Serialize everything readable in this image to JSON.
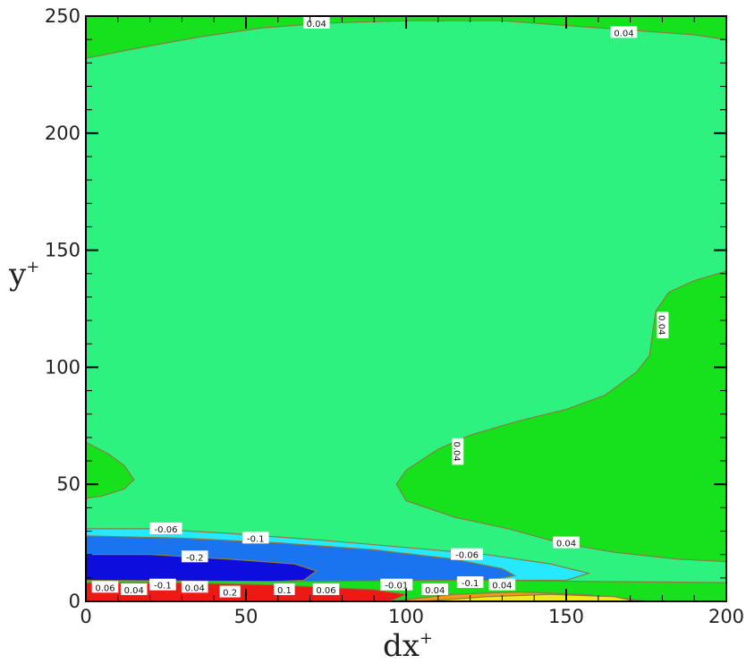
{
  "chart_data": {
    "type": "contour",
    "xlabel": "dx",
    "xlabel_sup": "+",
    "ylabel": "y",
    "ylabel_sup": "+",
    "xlim": [
      0,
      200
    ],
    "ylim": [
      0,
      250
    ],
    "xticks": [
      0,
      50,
      100,
      150,
      200
    ],
    "yticks": [
      0,
      50,
      100,
      150,
      200,
      250
    ],
    "colors": {
      "light_green": "#2df27f",
      "green": "#16e11d",
      "cyan": "#26e9ff",
      "mid_blue": "#1a74f0",
      "dark_blue": "#0d0ddc",
      "red": "#ec1a14",
      "orange": "#f49a18",
      "yellow": "#f0ea1c",
      "line": "#8a7d3c"
    },
    "contour_labels": [
      {
        "text": "0.04",
        "x": 72,
        "y": 247
      },
      {
        "text": "0.04",
        "x": 168,
        "y": 243
      },
      {
        "text": "0.04",
        "x": 180,
        "y": 118,
        "rotate": 90
      },
      {
        "text": "0.04",
        "x": 116,
        "y": 64,
        "rotate": 90
      },
      {
        "text": "0.04",
        "x": 150,
        "y": 25
      },
      {
        "text": "-0.06",
        "x": 25,
        "y": 31
      },
      {
        "text": "-0.1",
        "x": 53,
        "y": 27
      },
      {
        "text": "-0.2",
        "x": 34,
        "y": 19
      },
      {
        "text": "-0.06",
        "x": 119,
        "y": 20
      },
      {
        "text": "-0.1",
        "x": 120,
        "y": 8
      },
      {
        "text": "0.04",
        "x": 130,
        "y": 7
      },
      {
        "text": "0.06",
        "x": 6,
        "y": 6
      },
      {
        "text": "0.04",
        "x": 15,
        "y": 5
      },
      {
        "text": "-0.1",
        "x": 24,
        "y": 7
      },
      {
        "text": "0.04",
        "x": 34,
        "y": 6
      },
      {
        "text": "0.2",
        "x": 45,
        "y": 4
      },
      {
        "text": "0.1",
        "x": 62,
        "y": 5
      },
      {
        "text": "0.06",
        "x": 75,
        "y": 5
      },
      {
        "text": "-0.01",
        "x": 97,
        "y": 7
      },
      {
        "text": "0.04",
        "x": 109,
        "y": 5
      }
    ],
    "regions": [
      {
        "color": "green",
        "points": [
          [
            0,
            232
          ],
          [
            15,
            236
          ],
          [
            35,
            241
          ],
          [
            55,
            245
          ],
          [
            75,
            247
          ],
          [
            100,
            248
          ],
          [
            130,
            248
          ],
          [
            150,
            246
          ],
          [
            170,
            244
          ],
          [
            190,
            242
          ],
          [
            200,
            240
          ],
          [
            200,
            250
          ],
          [
            0,
            250
          ]
        ]
      },
      {
        "color": "green",
        "points": [
          [
            0,
            68
          ],
          [
            7,
            63
          ],
          [
            12,
            58
          ],
          [
            15,
            52
          ],
          [
            12,
            48
          ],
          [
            5,
            45
          ],
          [
            0,
            44
          ]
        ]
      },
      {
        "color": "green",
        "points": [
          [
            200,
            141
          ],
          [
            190,
            137
          ],
          [
            182,
            132
          ],
          [
            178,
            124
          ],
          [
            177,
            115
          ],
          [
            176,
            105
          ],
          [
            172,
            98
          ],
          [
            162,
            88
          ],
          [
            150,
            82
          ],
          [
            135,
            77
          ],
          [
            120,
            71
          ],
          [
            110,
            65
          ],
          [
            100,
            56
          ],
          [
            97,
            50
          ],
          [
            100,
            43
          ],
          [
            115,
            36
          ],
          [
            132,
            31
          ],
          [
            148,
            25
          ],
          [
            165,
            21
          ],
          [
            185,
            18
          ],
          [
            200,
            17
          ]
        ]
      },
      {
        "color": "cyan",
        "points": [
          [
            0,
            31
          ],
          [
            20,
            31
          ],
          [
            45,
            29
          ],
          [
            75,
            26
          ],
          [
            100,
            23
          ],
          [
            125,
            20
          ],
          [
            145,
            16
          ],
          [
            157,
            12
          ],
          [
            150,
            9
          ],
          [
            125,
            9
          ],
          [
            100,
            8
          ],
          [
            50,
            8
          ],
          [
            0,
            8
          ]
        ]
      },
      {
        "color": "mid_blue",
        "points": [
          [
            0,
            28
          ],
          [
            30,
            27
          ],
          [
            60,
            25
          ],
          [
            90,
            22
          ],
          [
            115,
            18
          ],
          [
            130,
            14
          ],
          [
            134,
            11
          ],
          [
            126,
            9
          ],
          [
            100,
            8
          ],
          [
            50,
            8
          ],
          [
            0,
            8
          ]
        ]
      },
      {
        "color": "dark_blue",
        "points": [
          [
            0,
            20
          ],
          [
            20,
            20
          ],
          [
            45,
            18
          ],
          [
            65,
            16
          ],
          [
            72,
            13
          ],
          [
            68,
            9
          ],
          [
            50,
            8
          ],
          [
            0,
            8
          ]
        ]
      },
      {
        "color": "green",
        "points": [
          [
            0,
            9
          ],
          [
            60,
            8.5
          ],
          [
            120,
            9
          ],
          [
            160,
            8.5
          ],
          [
            200,
            8
          ],
          [
            200,
            0
          ],
          [
            0,
            0
          ]
        ]
      },
      {
        "color": "red",
        "points": [
          [
            0,
            8
          ],
          [
            30,
            8
          ],
          [
            60,
            7
          ],
          [
            90,
            5
          ],
          [
            100,
            3
          ],
          [
            95,
            0
          ],
          [
            0,
            0
          ]
        ]
      },
      {
        "color": "orange",
        "points": [
          [
            95,
            0
          ],
          [
            115,
            3
          ],
          [
            135,
            4
          ],
          [
            155,
            3
          ],
          [
            170,
            1
          ],
          [
            175,
            0
          ]
        ]
      },
      {
        "color": "yellow",
        "points": [
          [
            105,
            0
          ],
          [
            125,
            2
          ],
          [
            145,
            3
          ],
          [
            165,
            2
          ],
          [
            172,
            0
          ]
        ]
      }
    ]
  }
}
